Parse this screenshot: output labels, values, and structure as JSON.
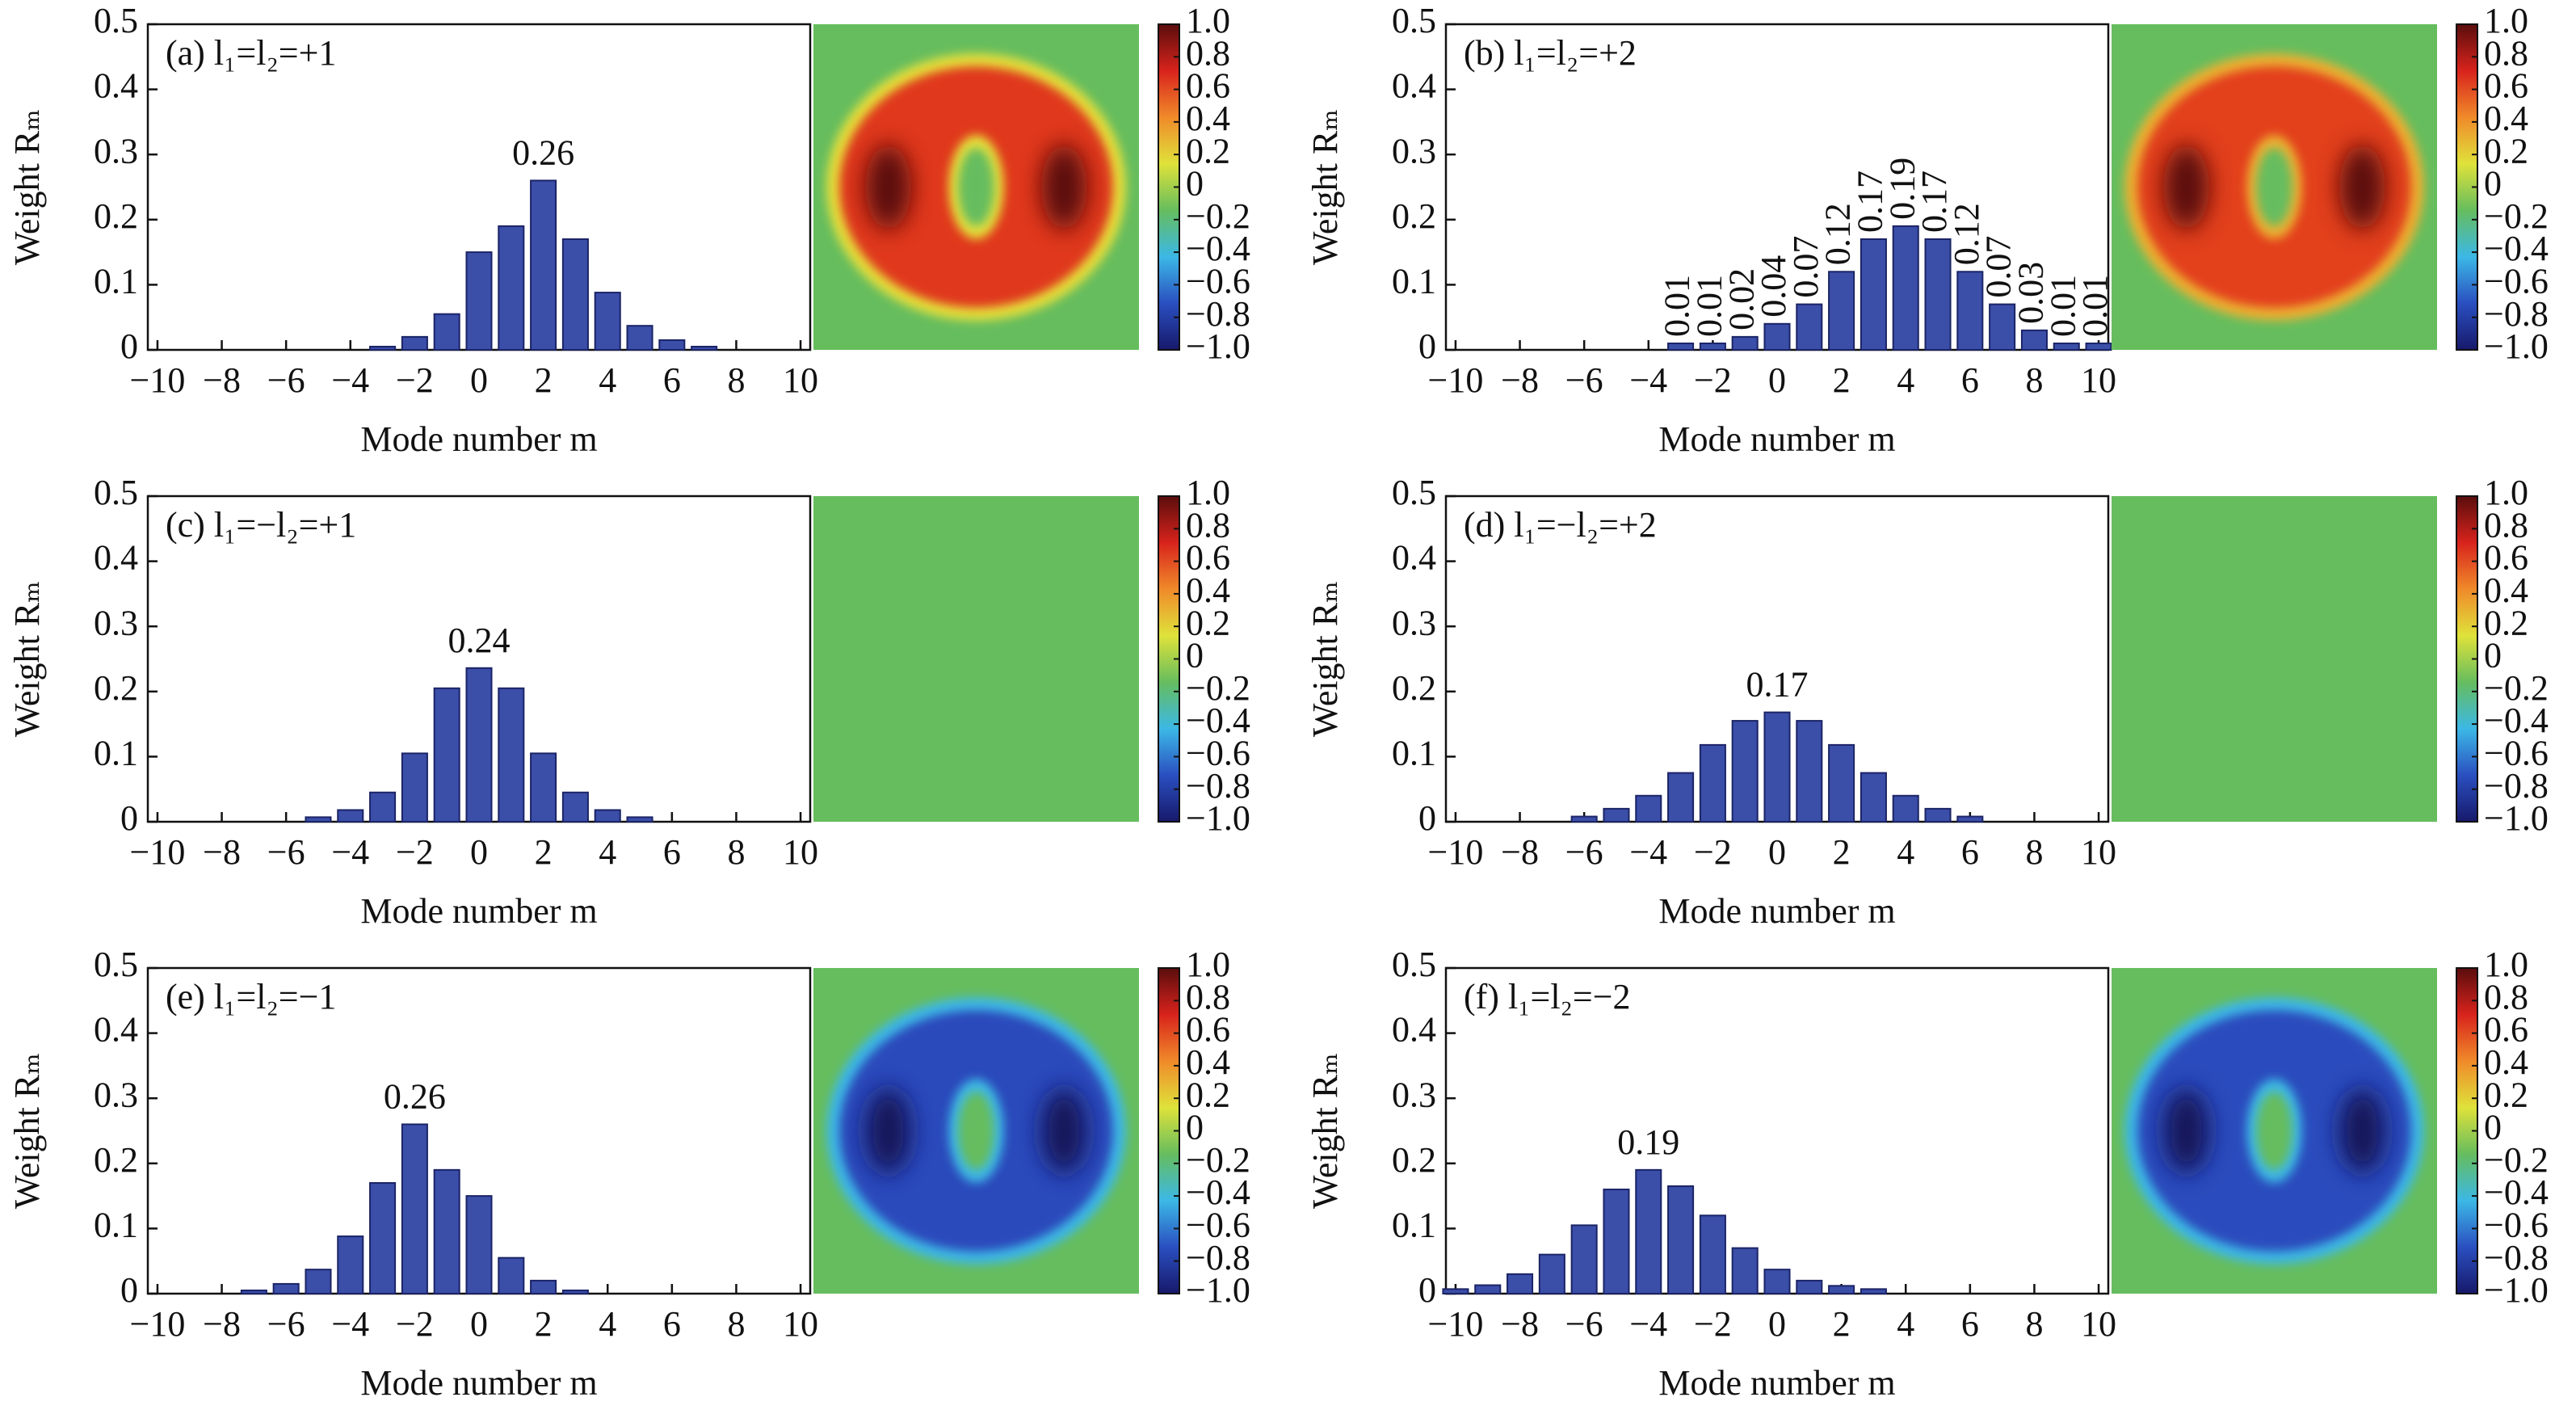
{
  "chart_data": [
    {
      "type": "bar",
      "title": "(a) l₁=l₂=+1",
      "x_label": "Mode number m",
      "y_label": "Weight Rₘ",
      "x": [
        -10,
        -9,
        -8,
        -7,
        -6,
        -5,
        -4,
        -3,
        -2,
        -1,
        0,
        1,
        2,
        3,
        4,
        5,
        6,
        7,
        8,
        9,
        10
      ],
      "values": [
        0,
        0,
        0,
        0,
        0,
        0,
        0,
        0.005,
        0.02,
        0.055,
        0.15,
        0.19,
        0.26,
        0.17,
        0.088,
        0.037,
        0.015,
        0.005,
        0,
        0,
        0
      ],
      "value_labels": [
        null,
        null,
        null,
        null,
        null,
        null,
        null,
        null,
        null,
        null,
        null,
        null,
        "0.26",
        null,
        null,
        null,
        null,
        null,
        null,
        null,
        null
      ],
      "color": "#3b4ea8",
      "xlim": [
        -10.3,
        10.3
      ],
      "xticks": [
        {
          "value": -10,
          "label": "−10"
        },
        {
          "value": -8,
          "label": "−8"
        },
        {
          "value": -6,
          "label": "−6"
        },
        {
          "value": -4,
          "label": "−4"
        },
        {
          "value": -2,
          "label": "−2"
        },
        0,
        2,
        4,
        6,
        8,
        10
      ],
      "ylim": [
        0,
        0.5
      ],
      "yticks": [
        0,
        0.1,
        0.2,
        0.3,
        0.4,
        0.5
      ],
      "map_background": "#66bd5e",
      "ring_colors": [
        "#e6df3a",
        "#e0381f",
        "#5a0d0d"
      ],
      "colorbar": {
        "ylim": [
          -1,
          1
        ],
        "colors": [
          "#17196a",
          "#2a4fc0",
          "#3cb8e6",
          "#66bd5e",
          "#dfe23a",
          "#f08a2a",
          "#d8231c",
          "#5a0d0d"
        ],
        "yticks": [
          {
            "value": 1,
            "label": "1.0"
          },
          0.8,
          0.6,
          0.4,
          0.2,
          0,
          {
            "value": -0.2,
            "label": "−0.2"
          },
          {
            "value": -0.4,
            "label": "−0.4"
          },
          {
            "value": -0.6,
            "label": "−0.6"
          },
          {
            "value": -0.8,
            "label": "−0.8"
          },
          {
            "value": -1,
            "label": "−1.0"
          }
        ]
      }
    },
    {
      "type": "bar",
      "title": "(b) l₁=l₂=+2",
      "x_label": "Mode number m",
      "y_label": "Weight Rₘ",
      "x": [
        -10,
        -9,
        -8,
        -7,
        -6,
        -5,
        -4,
        -3,
        -2,
        -1,
        0,
        1,
        2,
        3,
        4,
        5,
        6,
        7,
        8,
        9,
        10
      ],
      "values": [
        0,
        0,
        0,
        0,
        0,
        0,
        0,
        0.01,
        0.01,
        0.02,
        0.04,
        0.07,
        0.12,
        0.17,
        0.19,
        0.17,
        0.12,
        0.07,
        0.03,
        0.01,
        0.01
      ],
      "value_labels": [
        null,
        null,
        null,
        null,
        null,
        null,
        null,
        "0.01",
        "0.01",
        "0.02",
        "0.04",
        "0.07",
        "0.12",
        "0.17",
        "0.19",
        "0.17",
        "0.12",
        "0.07",
        "0.03",
        "0.01",
        "0.01"
      ],
      "color": "#3b4ea8",
      "xlim": [
        -10.3,
        10.3
      ],
      "xticks": [
        {
          "value": -10,
          "label": "−10"
        },
        {
          "value": -8,
          "label": "−8"
        },
        {
          "value": -6,
          "label": "−6"
        },
        {
          "value": -4,
          "label": "−4"
        },
        {
          "value": -2,
          "label": "−2"
        },
        0,
        2,
        4,
        6,
        8,
        10
      ],
      "ylim": [
        0,
        0.5
      ],
      "yticks": [
        0,
        0.1,
        0.2,
        0.3,
        0.4,
        0.5
      ],
      "map_background": "#66bd5e",
      "ring_colors": [
        "#ecb032",
        "#e3401f",
        "#5a0d0d"
      ],
      "colorbar": {
        "ylim": [
          -1,
          1
        ],
        "colors": [
          "#17196a",
          "#2a4fc0",
          "#3cb8e6",
          "#66bd5e",
          "#dfe23a",
          "#f08a2a",
          "#d8231c",
          "#5a0d0d"
        ],
        "yticks": [
          {
            "value": 1,
            "label": "1.0"
          },
          0.8,
          0.6,
          0.4,
          0.2,
          0,
          {
            "value": -0.2,
            "label": "−0.2"
          },
          {
            "value": -0.4,
            "label": "−0.4"
          },
          {
            "value": -0.6,
            "label": "−0.6"
          },
          {
            "value": -0.8,
            "label": "−0.8"
          },
          {
            "value": -1,
            "label": "−1.0"
          }
        ]
      }
    },
    {
      "type": "bar",
      "title": "(c) l₁=−l₂=+1",
      "x_label": "Mode number m",
      "y_label": "Weight Rₘ",
      "x": [
        -10,
        -9,
        -8,
        -7,
        -6,
        -5,
        -4,
        -3,
        -2,
        -1,
        0,
        1,
        2,
        3,
        4,
        5,
        6,
        7,
        8,
        9,
        10
      ],
      "values": [
        0,
        0,
        0,
        0,
        0,
        0.007,
        0.018,
        0.045,
        0.105,
        0.205,
        0.236,
        0.205,
        0.105,
        0.045,
        0.018,
        0.007,
        0,
        0,
        0,
        0,
        0
      ],
      "value_labels": [
        null,
        null,
        null,
        null,
        null,
        null,
        null,
        null,
        null,
        null,
        "0.24",
        null,
        null,
        null,
        null,
        null,
        null,
        null,
        null,
        null,
        null
      ],
      "color": "#3b4ea8",
      "xlim": [
        -10.3,
        10.3
      ],
      "xticks": [
        {
          "value": -10,
          "label": "−10"
        },
        {
          "value": -8,
          "label": "−8"
        },
        {
          "value": -6,
          "label": "−6"
        },
        {
          "value": -4,
          "label": "−4"
        },
        {
          "value": -2,
          "label": "−2"
        },
        0,
        2,
        4,
        6,
        8,
        10
      ],
      "ylim": [
        0,
        0.5
      ],
      "yticks": [
        0,
        0.1,
        0.2,
        0.3,
        0.4,
        0.5
      ],
      "map_background": "#66bd5e",
      "colorbar": {
        "ylim": [
          -1,
          1
        ],
        "colors": [
          "#17196a",
          "#2a4fc0",
          "#3cb8e6",
          "#66bd5e",
          "#dfe23a",
          "#f08a2a",
          "#d8231c",
          "#5a0d0d"
        ],
        "yticks": [
          {
            "value": 1,
            "label": "1.0"
          },
          0.8,
          0.6,
          0.4,
          0.2,
          0,
          {
            "value": -0.2,
            "label": "−0.2"
          },
          {
            "value": -0.4,
            "label": "−0.4"
          },
          {
            "value": -0.6,
            "label": "−0.6"
          },
          {
            "value": -0.8,
            "label": "−0.8"
          },
          {
            "value": -1,
            "label": "−1.0"
          }
        ]
      }
    },
    {
      "type": "bar",
      "title": "(d) l₁=−l₂=+2",
      "x_label": "Mode number m",
      "y_label": "Weight Rₘ",
      "x": [
        -10,
        -9,
        -8,
        -7,
        -6,
        -5,
        -4,
        -3,
        -2,
        -1,
        0,
        1,
        2,
        3,
        4,
        5,
        6,
        7,
        8,
        9,
        10
      ],
      "values": [
        0,
        0,
        0,
        0,
        0.008,
        0.02,
        0.04,
        0.075,
        0.118,
        0.155,
        0.168,
        0.155,
        0.118,
        0.075,
        0.04,
        0.02,
        0.008,
        0,
        0,
        0,
        0
      ],
      "value_labels": [
        null,
        null,
        null,
        null,
        null,
        null,
        null,
        null,
        null,
        null,
        "0.17",
        null,
        null,
        null,
        null,
        null,
        null,
        null,
        null,
        null,
        null
      ],
      "color": "#3b4ea8",
      "xlim": [
        -10.3,
        10.3
      ],
      "xticks": [
        {
          "value": -10,
          "label": "−10"
        },
        {
          "value": -8,
          "label": "−8"
        },
        {
          "value": -6,
          "label": "−6"
        },
        {
          "value": -4,
          "label": "−4"
        },
        {
          "value": -2,
          "label": "−2"
        },
        0,
        2,
        4,
        6,
        8,
        10
      ],
      "ylim": [
        0,
        0.5
      ],
      "yticks": [
        0,
        0.1,
        0.2,
        0.3,
        0.4,
        0.5
      ],
      "map_background": "#66bd5e",
      "colorbar": {
        "ylim": [
          -1,
          1
        ],
        "colors": [
          "#17196a",
          "#2a4fc0",
          "#3cb8e6",
          "#66bd5e",
          "#dfe23a",
          "#f08a2a",
          "#d8231c",
          "#5a0d0d"
        ],
        "yticks": [
          {
            "value": 1,
            "label": "1.0"
          },
          0.8,
          0.6,
          0.4,
          0.2,
          0,
          {
            "value": -0.2,
            "label": "−0.2"
          },
          {
            "value": -0.4,
            "label": "−0.4"
          },
          {
            "value": -0.6,
            "label": "−0.6"
          },
          {
            "value": -0.8,
            "label": "−0.8"
          },
          {
            "value": -1,
            "label": "−1.0"
          }
        ]
      }
    },
    {
      "type": "bar",
      "title": "(e) l₁=l₂=−1",
      "x_label": "Mode number m",
      "y_label": "Weight Rₘ",
      "x": [
        -10,
        -9,
        -8,
        -7,
        -6,
        -5,
        -4,
        -3,
        -2,
        -1,
        0,
        1,
        2,
        3,
        4,
        5,
        6,
        7,
        8,
        9,
        10
      ],
      "values": [
        0,
        0,
        0,
        0.005,
        0.015,
        0.037,
        0.088,
        0.17,
        0.26,
        0.19,
        0.15,
        0.055,
        0.02,
        0.005,
        0,
        0,
        0,
        0,
        0,
        0,
        0
      ],
      "value_labels": [
        null,
        null,
        null,
        null,
        null,
        null,
        null,
        null,
        "0.26",
        null,
        null,
        null,
        null,
        null,
        null,
        null,
        null,
        null,
        null,
        null,
        null
      ],
      "color": "#3b4ea8",
      "xlim": [
        -10.3,
        10.3
      ],
      "xticks": [
        {
          "value": -10,
          "label": "−10"
        },
        {
          "value": -8,
          "label": "−8"
        },
        {
          "value": -6,
          "label": "−6"
        },
        {
          "value": -4,
          "label": "−4"
        },
        {
          "value": -2,
          "label": "−2"
        },
        0,
        2,
        4,
        6,
        8,
        10
      ],
      "ylim": [
        0,
        0.5
      ],
      "yticks": [
        0,
        0.1,
        0.2,
        0.3,
        0.4,
        0.5
      ],
      "map_background": "#66bd5e",
      "ring_colors": [
        "#3cb8e6",
        "#2c49bb",
        "#14165a"
      ],
      "colorbar": {
        "ylim": [
          -1,
          1
        ],
        "colors": [
          "#17196a",
          "#2a4fc0",
          "#3cb8e6",
          "#66bd5e",
          "#dfe23a",
          "#f08a2a",
          "#d8231c",
          "#5a0d0d"
        ],
        "yticks": [
          {
            "value": 1,
            "label": "1.0"
          },
          0.8,
          0.6,
          0.4,
          0.2,
          0,
          {
            "value": -0.2,
            "label": "−0.2"
          },
          {
            "value": -0.4,
            "label": "−0.4"
          },
          {
            "value": -0.6,
            "label": "−0.6"
          },
          {
            "value": -0.8,
            "label": "−0.8"
          },
          {
            "value": -1,
            "label": "−1.0"
          }
        ]
      }
    },
    {
      "type": "bar",
      "title": "(f) l₁=l₂=−2",
      "x_label": "Mode number m",
      "y_label": "Weight Rₘ",
      "x": [
        -10,
        -9,
        -8,
        -7,
        -6,
        -5,
        -4,
        -3,
        -2,
        -1,
        0,
        1,
        2,
        3,
        4,
        5,
        6,
        7,
        8,
        9,
        10
      ],
      "values": [
        0.007,
        0.013,
        0.03,
        0.06,
        0.105,
        0.16,
        0.19,
        0.165,
        0.12,
        0.07,
        0.037,
        0.02,
        0.012,
        0.007,
        0,
        0,
        0,
        0,
        0,
        0,
        0
      ],
      "value_labels": [
        null,
        null,
        null,
        null,
        null,
        null,
        "0.19",
        null,
        null,
        null,
        null,
        null,
        null,
        null,
        null,
        null,
        null,
        null,
        null,
        null,
        null
      ],
      "color": "#3b4ea8",
      "xlim": [
        -10.3,
        10.3
      ],
      "xticks": [
        {
          "value": -10,
          "label": "−10"
        },
        {
          "value": -8,
          "label": "−8"
        },
        {
          "value": -6,
          "label": "−6"
        },
        {
          "value": -4,
          "label": "−4"
        },
        {
          "value": -2,
          "label": "−2"
        },
        0,
        2,
        4,
        6,
        8,
        10
      ],
      "ylim": [
        0,
        0.5
      ],
      "yticks": [
        0,
        0.1,
        0.2,
        0.3,
        0.4,
        0.5
      ],
      "map_background": "#66bd5e",
      "ring_colors": [
        "#3cb8e6",
        "#2c4bbd",
        "#14165a"
      ],
      "colorbar": {
        "ylim": [
          -1,
          1
        ],
        "colors": [
          "#17196a",
          "#2a4fc0",
          "#3cb8e6",
          "#66bd5e",
          "#dfe23a",
          "#f08a2a",
          "#d8231c",
          "#5a0d0d"
        ],
        "yticks": [
          {
            "value": 1,
            "label": "1.0"
          },
          0.8,
          0.6,
          0.4,
          0.2,
          0,
          {
            "value": -0.2,
            "label": "−0.2"
          },
          {
            "value": -0.4,
            "label": "−0.4"
          },
          {
            "value": -0.6,
            "label": "−0.6"
          },
          {
            "value": -0.8,
            "label": "−0.8"
          },
          {
            "value": -1,
            "label": "−1.0"
          }
        ]
      }
    }
  ]
}
